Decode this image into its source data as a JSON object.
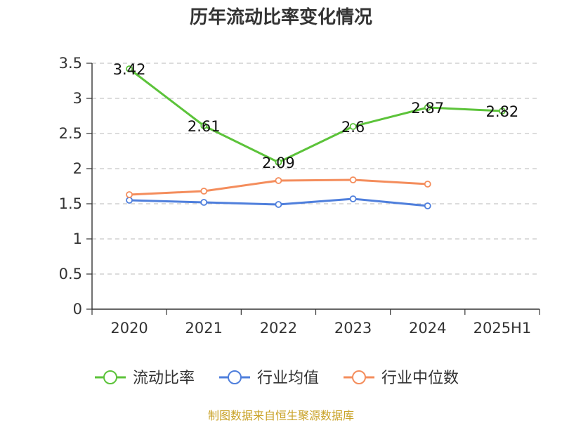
{
  "chart_data": {
    "type": "line",
    "title": "历年流动比率变化情况",
    "categories": [
      "2020",
      "2021",
      "2022",
      "2023",
      "2024",
      "2025H1"
    ],
    "series": [
      {
        "name": "流动比率",
        "color": "#5cc33a",
        "values": [
          3.42,
          2.61,
          2.09,
          2.6,
          2.87,
          2.82
        ],
        "labels": [
          "3.42",
          "2.61",
          "2.09",
          "2.6",
          "2.87",
          "2.82"
        ]
      },
      {
        "name": "行业均值",
        "color": "#4f7fdc",
        "values": [
          1.55,
          1.52,
          1.49,
          1.57,
          1.47,
          null
        ]
      },
      {
        "name": "行业中位数",
        "color": "#f48d5c",
        "values": [
          1.63,
          1.68,
          1.83,
          1.84,
          1.78,
          null
        ]
      }
    ],
    "y_ticks": [
      "0",
      "0.5",
      "1",
      "1.5",
      "2",
      "2.5",
      "3",
      "3.5"
    ],
    "ylim": [
      0,
      3.5
    ],
    "grid": true,
    "legend_position": "bottom"
  },
  "footer": {
    "source": "制图数据来自恒生聚源数据库"
  }
}
